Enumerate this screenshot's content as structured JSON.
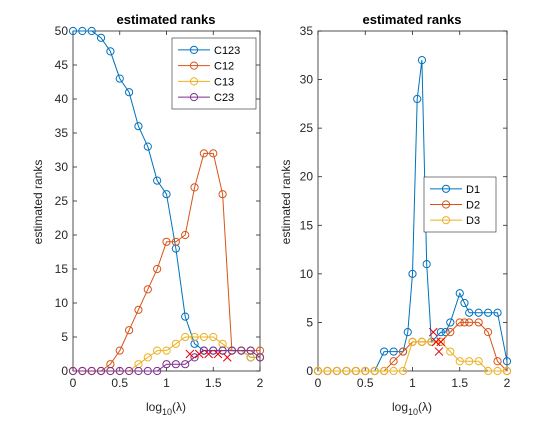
{
  "chart_data": [
    {
      "type": "line",
      "title": "estimated ranks",
      "xlabel": "log",
      "xlabel_sub": "10",
      "xlabel_tail": "(λ)",
      "ylabel": "estimated ranks",
      "xlim": [
        0,
        2
      ],
      "ylim": [
        0,
        50
      ],
      "xticks": [
        0,
        0.5,
        1,
        1.5,
        2
      ],
      "xtick_labels": [
        "0",
        "0.5",
        "1",
        "1.5",
        "2"
      ],
      "yticks": [
        0,
        5,
        10,
        15,
        20,
        25,
        30,
        35,
        40,
        45,
        50
      ],
      "ytick_labels": [
        "0",
        "5",
        "10",
        "15",
        "20",
        "25",
        "30",
        "35",
        "40",
        "45",
        "50"
      ],
      "legend_position": "top-right",
      "x": [
        0,
        0.1,
        0.2,
        0.3,
        0.4,
        0.5,
        0.6,
        0.7,
        0.8,
        0.9,
        1.0,
        1.1,
        1.2,
        1.3,
        1.4,
        1.5,
        1.6,
        1.7,
        1.8,
        1.9,
        2.0
      ],
      "series": [
        {
          "name": "C123",
          "color": "#0072BD",
          "points": [
            [
              0,
              50
            ],
            [
              0.1,
              50
            ],
            [
              0.2,
              50
            ],
            [
              0.3,
              49
            ],
            [
              0.4,
              47
            ],
            [
              0.5,
              43
            ],
            [
              0.6,
              41
            ],
            [
              0.7,
              36
            ],
            [
              0.8,
              33
            ],
            [
              0.9,
              28
            ],
            [
              1.0,
              26
            ],
            [
              1.1,
              18
            ],
            [
              1.2,
              8
            ],
            [
              1.3,
              4
            ],
            [
              1.4,
              3
            ],
            [
              1.5,
              3
            ],
            [
              1.6,
              3
            ],
            [
              1.7,
              3
            ],
            [
              1.8,
              3
            ],
            [
              1.9,
              2
            ],
            [
              2.0,
              2
            ]
          ]
        },
        {
          "name": "C12",
          "color": "#D95319",
          "points": [
            [
              0,
              0
            ],
            [
              0.1,
              0
            ],
            [
              0.2,
              0
            ],
            [
              0.3,
              0
            ],
            [
              0.4,
              1
            ],
            [
              0.5,
              3
            ],
            [
              0.6,
              6
            ],
            [
              0.7,
              9
            ],
            [
              0.8,
              12
            ],
            [
              0.9,
              15
            ],
            [
              1.0,
              19
            ],
            [
              1.1,
              19
            ],
            [
              1.2,
              20
            ],
            [
              1.3,
              27
            ],
            [
              1.4,
              32
            ],
            [
              1.5,
              32
            ],
            [
              1.6,
              26
            ],
            [
              1.7,
              3
            ],
            [
              1.8,
              3
            ],
            [
              1.9,
              3
            ],
            [
              2.0,
              3
            ]
          ]
        },
        {
          "name": "C13",
          "color": "#EDB120",
          "points": [
            [
              0,
              0
            ],
            [
              0.1,
              0
            ],
            [
              0.2,
              0
            ],
            [
              0.3,
              0
            ],
            [
              0.4,
              0
            ],
            [
              0.5,
              0
            ],
            [
              0.6,
              0
            ],
            [
              0.7,
              1
            ],
            [
              0.8,
              2
            ],
            [
              0.9,
              3
            ],
            [
              1.0,
              3
            ],
            [
              1.1,
              4
            ],
            [
              1.2,
              5
            ],
            [
              1.3,
              5
            ],
            [
              1.4,
              5
            ],
            [
              1.5,
              5
            ],
            [
              1.6,
              4
            ],
            [
              1.7,
              3
            ],
            [
              1.8,
              3
            ],
            [
              1.9,
              2
            ],
            [
              2.0,
              2
            ]
          ]
        },
        {
          "name": "C23",
          "color": "#7E2F8E",
          "points": [
            [
              0,
              0
            ],
            [
              0.1,
              0
            ],
            [
              0.2,
              0
            ],
            [
              0.3,
              0
            ],
            [
              0.4,
              0
            ],
            [
              0.5,
              0
            ],
            [
              0.6,
              0
            ],
            [
              0.7,
              0
            ],
            [
              0.8,
              0
            ],
            [
              0.9,
              0
            ],
            [
              1.0,
              1
            ],
            [
              1.1,
              1
            ],
            [
              1.2,
              1
            ],
            [
              1.3,
              2
            ],
            [
              1.4,
              3
            ],
            [
              1.5,
              3
            ],
            [
              1.6,
              3
            ],
            [
              1.7,
              3
            ],
            [
              1.8,
              3
            ],
            [
              1.9,
              3
            ],
            [
              2.0,
              2
            ]
          ]
        }
      ],
      "markers_x": [
        [
          1.25,
          2.5
        ],
        [
          1.35,
          2.5
        ],
        [
          1.45,
          2.5
        ],
        [
          1.55,
          2.5
        ],
        [
          1.65,
          2.0
        ]
      ]
    },
    {
      "type": "line",
      "title": "estimated ranks",
      "xlabel": "log",
      "xlabel_sub": "10",
      "xlabel_tail": "(λ)",
      "ylabel": "estimated ranks",
      "xlim": [
        0,
        2
      ],
      "ylim": [
        0,
        35
      ],
      "xticks": [
        0,
        0.5,
        1,
        1.5,
        2
      ],
      "xtick_labels": [
        "0",
        "0.5",
        "1",
        "1.5",
        "2"
      ],
      "yticks": [
        0,
        5,
        10,
        15,
        20,
        25,
        30,
        35
      ],
      "ytick_labels": [
        "0",
        "5",
        "10",
        "15",
        "20",
        "25",
        "30",
        "35"
      ],
      "legend_position": "middle-right",
      "series": [
        {
          "name": "D1",
          "color": "#0072BD",
          "points": [
            [
              0,
              0
            ],
            [
              0.1,
              0
            ],
            [
              0.2,
              0
            ],
            [
              0.3,
              0
            ],
            [
              0.4,
              0
            ],
            [
              0.5,
              0
            ],
            [
              0.6,
              0
            ],
            [
              0.7,
              2
            ],
            [
              0.8,
              2
            ],
            [
              0.9,
              2
            ],
            [
              0.95,
              4
            ],
            [
              1.0,
              10
            ],
            [
              1.05,
              28
            ],
            [
              1.1,
              32
            ],
            [
              1.15,
              11
            ],
            [
              1.2,
              3
            ],
            [
              1.3,
              4
            ],
            [
              1.35,
              4
            ],
            [
              1.4,
              5
            ],
            [
              1.5,
              8
            ],
            [
              1.55,
              7
            ],
            [
              1.6,
              6
            ],
            [
              1.7,
              6
            ],
            [
              1.8,
              6
            ],
            [
              1.9,
              6
            ],
            [
              2.0,
              1
            ]
          ]
        },
        {
          "name": "D2",
          "color": "#D95319",
          "points": [
            [
              0,
              0
            ],
            [
              0.1,
              0
            ],
            [
              0.2,
              0
            ],
            [
              0.3,
              0
            ],
            [
              0.4,
              0
            ],
            [
              0.5,
              0
            ],
            [
              0.6,
              0
            ],
            [
              0.7,
              0
            ],
            [
              0.8,
              1
            ],
            [
              0.9,
              2
            ],
            [
              1.0,
              3
            ],
            [
              1.1,
              3
            ],
            [
              1.2,
              3
            ],
            [
              1.3,
              3
            ],
            [
              1.4,
              4
            ],
            [
              1.5,
              5
            ],
            [
              1.55,
              5
            ],
            [
              1.6,
              5
            ],
            [
              1.7,
              5
            ],
            [
              1.8,
              4
            ],
            [
              1.9,
              1
            ],
            [
              2.0,
              0
            ]
          ]
        },
        {
          "name": "D3",
          "color": "#EDB120",
          "points": [
            [
              0,
              0
            ],
            [
              0.1,
              0
            ],
            [
              0.2,
              0
            ],
            [
              0.3,
              0
            ],
            [
              0.4,
              0
            ],
            [
              0.5,
              0
            ],
            [
              0.6,
              0
            ],
            [
              0.7,
              0
            ],
            [
              0.8,
              0
            ],
            [
              0.9,
              0
            ],
            [
              1.0,
              3
            ],
            [
              1.1,
              3
            ],
            [
              1.2,
              3
            ],
            [
              1.3,
              3
            ],
            [
              1.4,
              2
            ],
            [
              1.5,
              1
            ],
            [
              1.6,
              1
            ],
            [
              1.7,
              1
            ],
            [
              1.8,
              0
            ],
            [
              1.9,
              0
            ],
            [
              2.0,
              0
            ]
          ]
        }
      ],
      "markers_x": [
        [
          1.22,
          4
        ],
        [
          1.25,
          3
        ],
        [
          1.28,
          2
        ],
        [
          1.3,
          3
        ]
      ]
    }
  ]
}
